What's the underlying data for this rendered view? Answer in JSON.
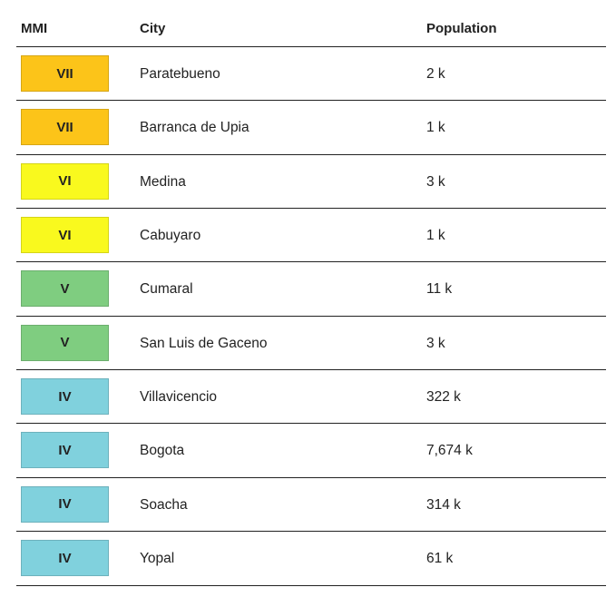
{
  "table": {
    "headers": [
      "MMI",
      "City",
      "Population"
    ],
    "rows": [
      {
        "mmi": "VII",
        "color": "#fcc419",
        "city": "Paratebueno",
        "population": "2 k"
      },
      {
        "mmi": "VII",
        "color": "#fcc419",
        "city": "Barranca de Upia",
        "population": "1 k"
      },
      {
        "mmi": "VI",
        "color": "#f9f91e",
        "city": "Medina",
        "population": "3 k"
      },
      {
        "mmi": "VI",
        "color": "#f9f91e",
        "city": "Cabuyaro",
        "population": "1 k"
      },
      {
        "mmi": "V",
        "color": "#7fcd80",
        "city": "Cumaral",
        "population": "11 k"
      },
      {
        "mmi": "V",
        "color": "#7fcd80",
        "city": "San Luis de Gaceno",
        "population": "3 k"
      },
      {
        "mmi": "IV",
        "color": "#80d1dd",
        "city": "Villavicencio",
        "population": "322 k"
      },
      {
        "mmi": "IV",
        "color": "#80d1dd",
        "city": "Bogota",
        "population": "7,674 k"
      },
      {
        "mmi": "IV",
        "color": "#80d1dd",
        "city": "Soacha",
        "population": "314 k"
      },
      {
        "mmi": "IV",
        "color": "#80d1dd",
        "city": "Yopal",
        "population": "61 k"
      }
    ]
  }
}
